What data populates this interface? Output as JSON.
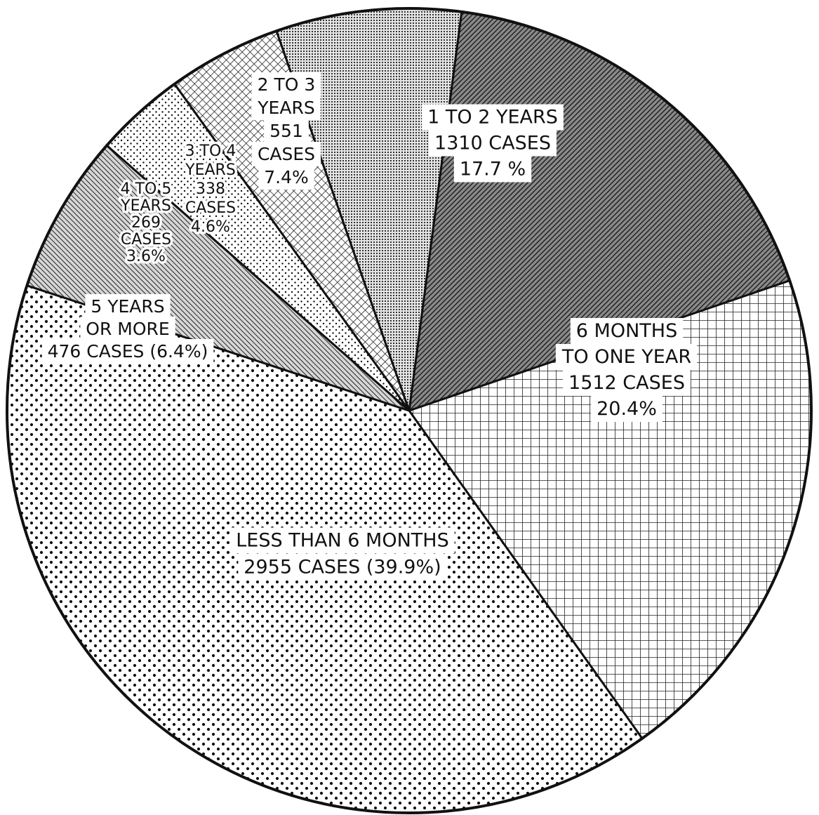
{
  "chart_data": {
    "type": "pie",
    "slices": [
      {
        "label_lines": [
          "1 TO 2 YEARS",
          "1310 CASES",
          "17.7 %"
        ],
        "category": "1 TO 2 YEARS",
        "cases": 1310,
        "percent": 17.7,
        "pattern": "diag-dark"
      },
      {
        "label_lines": [
          "6 MONTHS",
          "TO ONE YEAR",
          "1512 CASES",
          "20.4%"
        ],
        "category": "6 MONTHS TO ONE YEAR",
        "cases": 1512,
        "percent": 20.4,
        "pattern": "grid"
      },
      {
        "label_lines": [
          "LESS THAN 6 MONTHS",
          "2955 CASES (39.9%)"
        ],
        "category": "LESS THAN 6 MONTHS",
        "cases": 2955,
        "percent": 39.9,
        "pattern": "dots-large"
      },
      {
        "label_lines": [
          "5 YEARS",
          "OR MORE",
          "476 CASES (6.4%)"
        ],
        "category": "5 YEARS OR MORE",
        "cases": 476,
        "percent": 6.4,
        "pattern": "diag-medium"
      },
      {
        "label_lines": [
          "4 TO 5",
          "YEARS",
          "269",
          "CASES",
          "3.6%"
        ],
        "category": "4 TO 5 YEARS",
        "cases": 269,
        "percent": 3.6,
        "pattern": "dots-small"
      },
      {
        "label_lines": [
          "3 TO 4",
          "YEARS",
          "338",
          "CASES",
          "4.6%"
        ],
        "category": "3 TO 4 YEARS",
        "cases": 338,
        "percent": 4.6,
        "pattern": "crosshatch"
      },
      {
        "label_lines": [
          "2 TO 3",
          "YEARS",
          "551",
          "CASES",
          "7.4%"
        ],
        "category": "2 TO 3 YEARS",
        "cases": 551,
        "percent": 7.4,
        "pattern": "fine-dots"
      }
    ],
    "start_direction": "top, boundary between 2 TO 3 YEARS and 1 TO 2 YEARS",
    "direction": "clockwise",
    "legend": "none",
    "title": ""
  }
}
